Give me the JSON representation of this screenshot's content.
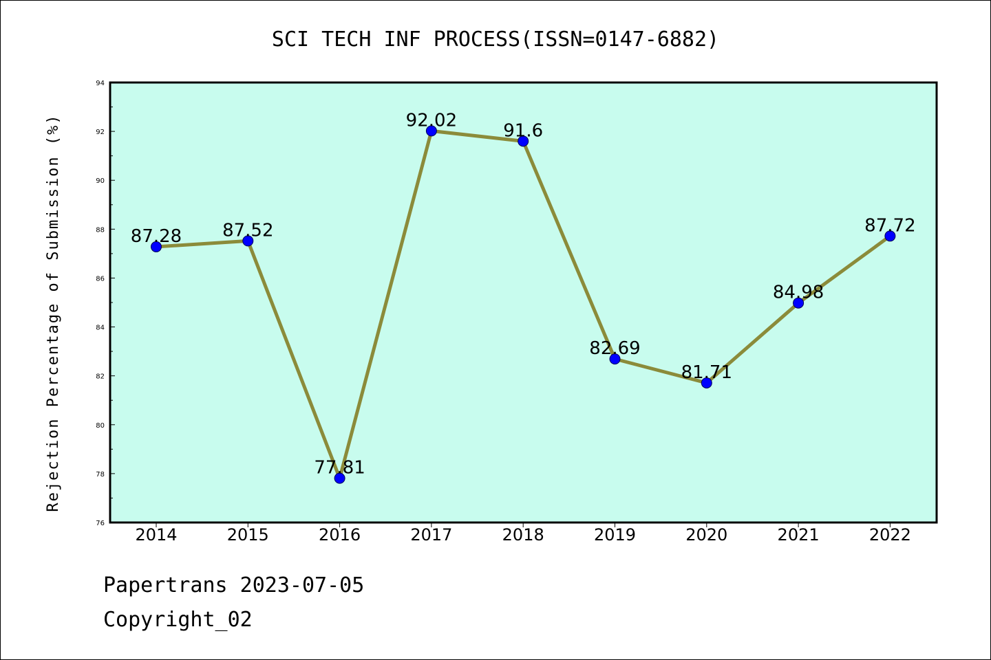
{
  "chart_data": {
    "type": "line",
    "title": "SCI TECH INF PROCESS(ISSN=0147-6882)",
    "xlabel": "",
    "ylabel": "Rejection Percentage of Submission (%)",
    "categories": [
      "2014",
      "2015",
      "2016",
      "2017",
      "2018",
      "2019",
      "2020",
      "2021",
      "2022"
    ],
    "values": [
      87.28,
      87.52,
      77.81,
      92.02,
      91.6,
      82.69,
      81.71,
      84.98,
      87.72
    ],
    "data_labels": [
      "87.28",
      "87.52",
      "77.81",
      "92.02",
      "91.6",
      "82.69",
      "81.71",
      "84.98",
      "87.72"
    ],
    "ylim": [
      76,
      94
    ],
    "yticks": [
      "76",
      "78",
      "80",
      "82",
      "84",
      "86",
      "88",
      "90",
      "92",
      "94"
    ],
    "grid": false,
    "colors": {
      "plot_background": "#c8fcee",
      "line": "#8b8b3a",
      "marker": "#0000ff"
    }
  },
  "footer": {
    "line1": "Papertrans 2023-07-05",
    "line2": "Copyright_02"
  }
}
